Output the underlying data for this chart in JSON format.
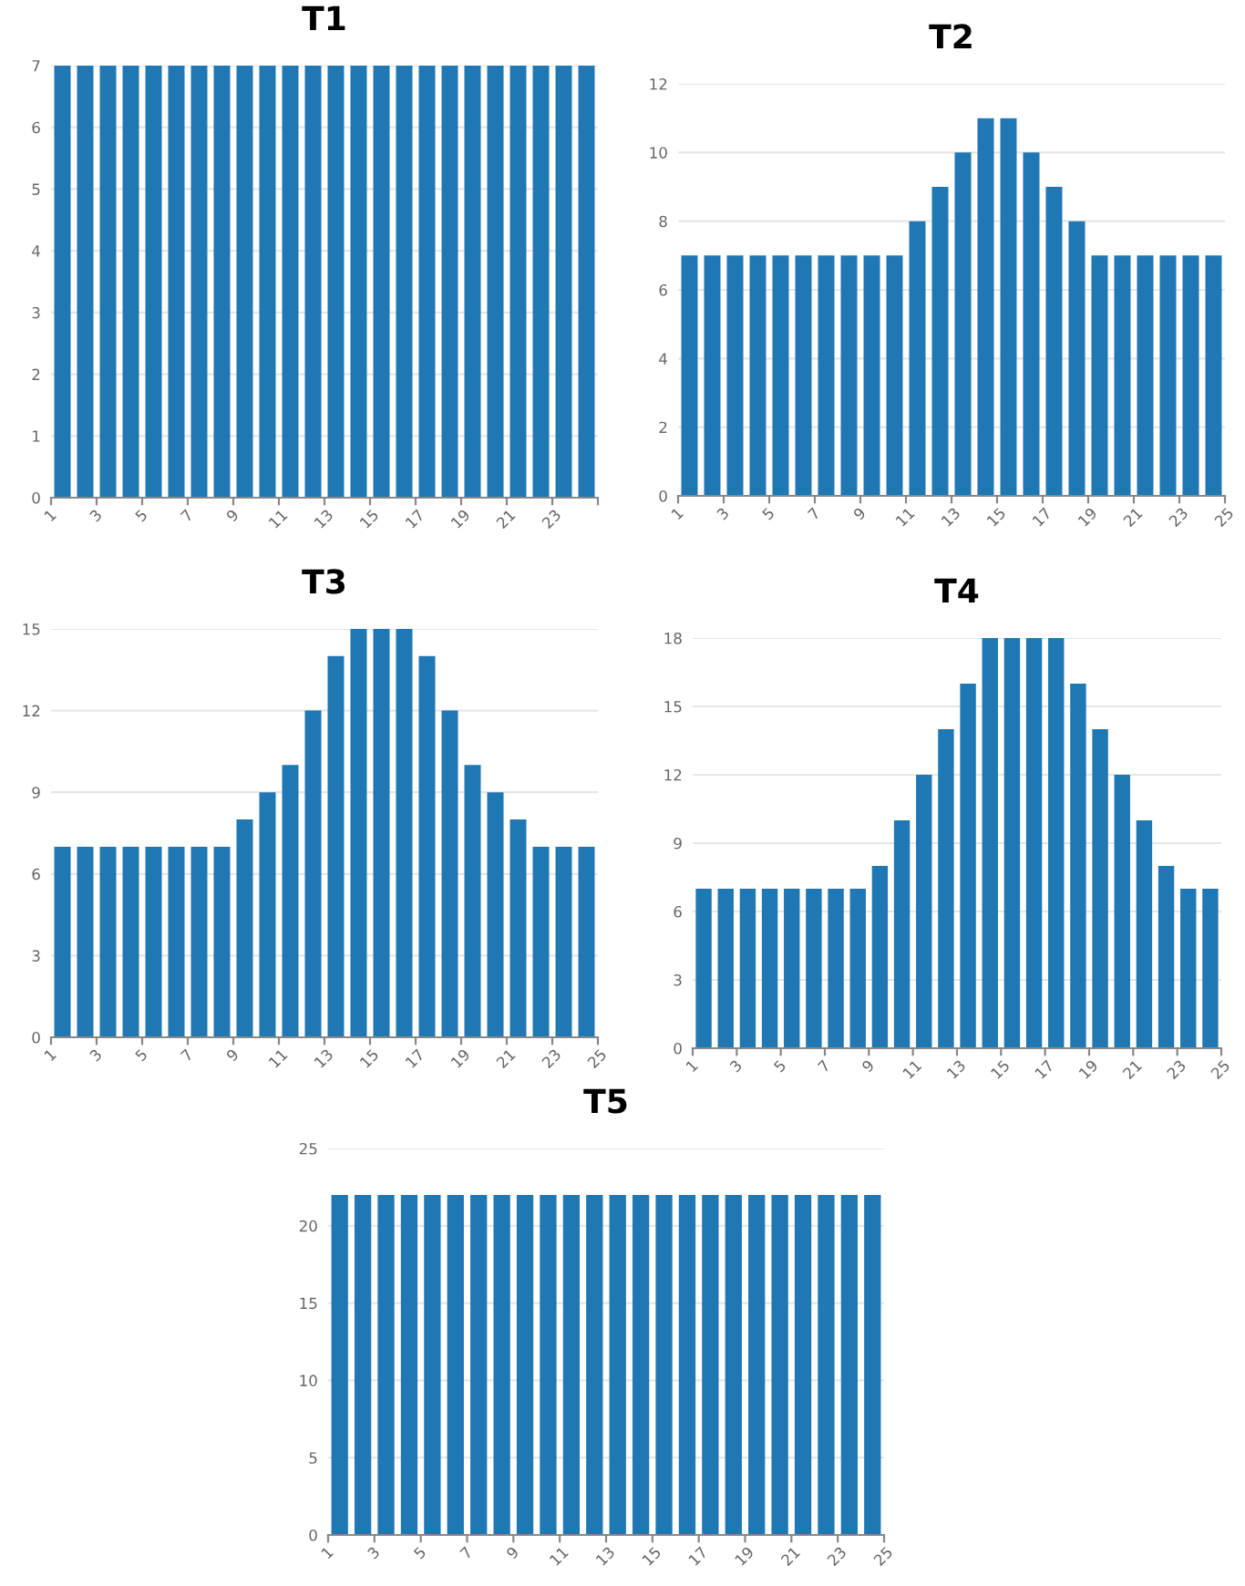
{
  "chart_data": [
    {
      "type": "bar",
      "title": "T1",
      "x": [
        1.5,
        2.5,
        3.5,
        4.5,
        5.5,
        6.5,
        7.5,
        8.5,
        9.5,
        10.5,
        11.5,
        12.5,
        13.5,
        14.5,
        15.5,
        16.5,
        17.5,
        18.5,
        19.5,
        20.5,
        21.5,
        22.5,
        23.5,
        24.5
      ],
      "values": [
        7,
        7,
        7,
        7,
        7,
        7,
        7,
        7,
        7,
        7,
        7,
        7,
        7,
        7,
        7,
        7,
        7,
        7,
        7,
        7,
        7,
        7,
        7,
        7
      ],
      "color": "#1f77b4",
      "xlim": [
        1,
        25
      ],
      "xticks": [
        1,
        3,
        5,
        7,
        9,
        11,
        13,
        15,
        17,
        19,
        21,
        23,
        {
          "value": 25,
          "label": null
        }
      ],
      "ylim": [
        0,
        7
      ],
      "yticks": [
        0,
        1,
        2,
        3,
        4,
        5,
        6,
        7
      ],
      "grid": "y"
    },
    {
      "type": "bar",
      "title": "T2",
      "x": [
        1.5,
        2.5,
        3.5,
        4.5,
        5.5,
        6.5,
        7.5,
        8.5,
        9.5,
        10.5,
        11.5,
        12.5,
        13.5,
        14.5,
        15.5,
        16.5,
        17.5,
        18.5,
        19.5,
        20.5,
        21.5,
        22.5,
        23.5,
        24.5
      ],
      "values": [
        7,
        7,
        7,
        7,
        7,
        7,
        7,
        7,
        7,
        7,
        8,
        9,
        10,
        11,
        11,
        10,
        9,
        8,
        7,
        7,
        7,
        7,
        7,
        7
      ],
      "color": "#1f77b4",
      "xlim": [
        1,
        25
      ],
      "xticks": [
        1,
        3,
        5,
        7,
        9,
        11,
        13,
        15,
        17,
        19,
        21,
        23,
        25
      ],
      "ylim": [
        0,
        12
      ],
      "yticks": [
        0,
        2,
        4,
        6,
        8,
        10,
        12
      ],
      "grid": "y"
    },
    {
      "type": "bar",
      "title": "T3",
      "x": [
        1.5,
        2.5,
        3.5,
        4.5,
        5.5,
        6.5,
        7.5,
        8.5,
        9.5,
        10.5,
        11.5,
        12.5,
        13.5,
        14.5,
        15.5,
        16.5,
        17.5,
        18.5,
        19.5,
        20.5,
        21.5,
        22.5,
        23.5,
        24.5
      ],
      "values": [
        7,
        7,
        7,
        7,
        7,
        7,
        7,
        7,
        8,
        9,
        10,
        12,
        14,
        15,
        15,
        15,
        14,
        12,
        10,
        9,
        8,
        7,
        7,
        7
      ],
      "color": "#1f77b4",
      "xlim": [
        1,
        25
      ],
      "xticks": [
        1,
        3,
        5,
        7,
        9,
        11,
        13,
        15,
        17,
        19,
        21,
        23,
        25
      ],
      "ylim": [
        0,
        15
      ],
      "yticks": [
        0,
        3,
        6,
        9,
        12,
        15
      ],
      "grid": "y"
    },
    {
      "type": "bar",
      "title": "T4",
      "x": [
        1.5,
        2.5,
        3.5,
        4.5,
        5.5,
        6.5,
        7.5,
        8.5,
        9.5,
        10.5,
        11.5,
        12.5,
        13.5,
        14.5,
        15.5,
        16.5,
        17.5,
        18.5,
        19.5,
        20.5,
        21.5,
        22.5,
        23.5,
        24.5
      ],
      "values": [
        7,
        7,
        7,
        7,
        7,
        7,
        7,
        7,
        8,
        10,
        12,
        14,
        16,
        18,
        18,
        18,
        18,
        16,
        14,
        12,
        10,
        8,
        7,
        7
      ],
      "color": "#1f77b4",
      "xlim": [
        1,
        25
      ],
      "xticks": [
        1,
        3,
        5,
        7,
        9,
        11,
        13,
        15,
        17,
        19,
        21,
        23,
        25
      ],
      "ylim": [
        0,
        18
      ],
      "yticks": [
        0,
        3,
        6,
        9,
        12,
        15,
        18
      ],
      "grid": "y"
    },
    {
      "type": "bar",
      "title": "T5",
      "x": [
        1.5,
        2.5,
        3.5,
        4.5,
        5.5,
        6.5,
        7.5,
        8.5,
        9.5,
        10.5,
        11.5,
        12.5,
        13.5,
        14.5,
        15.5,
        16.5,
        17.5,
        18.5,
        19.5,
        20.5,
        21.5,
        22.5,
        23.5,
        24.5
      ],
      "values": [
        22,
        22,
        22,
        22,
        22,
        22,
        22,
        22,
        22,
        22,
        22,
        22,
        22,
        22,
        22,
        22,
        22,
        22,
        22,
        22,
        22,
        22,
        22,
        22
      ],
      "color": "#1f77b4",
      "xlim": [
        1,
        25
      ],
      "xticks": [
        1,
        3,
        5,
        7,
        9,
        11,
        13,
        15,
        17,
        19,
        21,
        23,
        25
      ],
      "ylim": [
        0,
        25
      ],
      "yticks": [
        0,
        5,
        10,
        15,
        20,
        25
      ],
      "grid": "y"
    }
  ]
}
